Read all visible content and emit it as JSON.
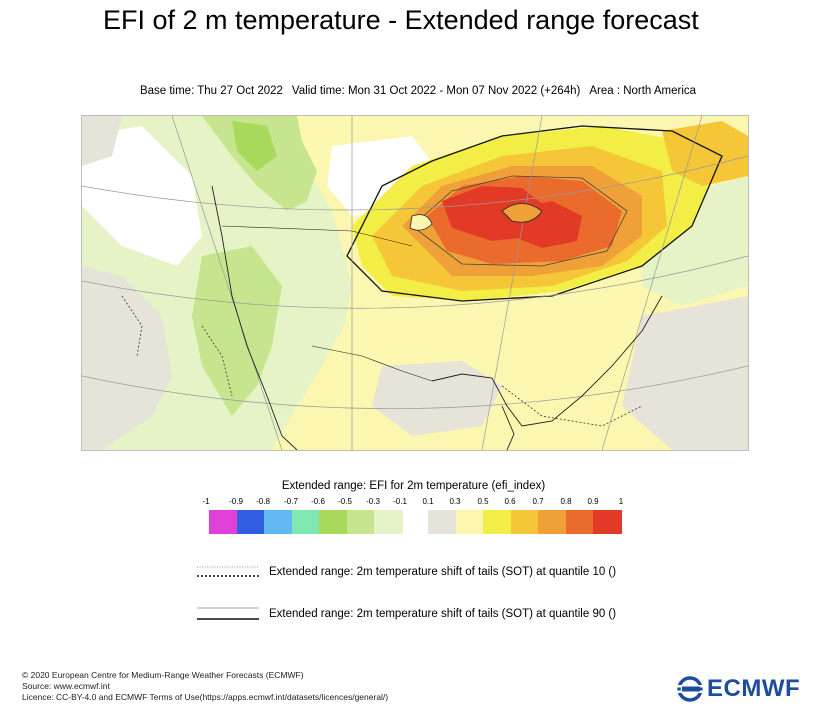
{
  "title": "EFI of 2 m temperature - Extended range forecast",
  "subtitle": {
    "base_time": "Base time: Thu 27 Oct 2022",
    "valid_time": "Valid time: Mon 31 Oct 2022 - Mon 07 Nov 2022 (+264h)",
    "area": "Area : North America"
  },
  "map": {
    "region": "North America",
    "description_icon": "efi-temperature-map"
  },
  "legend": {
    "title": "Extended range: EFI for 2m temperature (efi_index)",
    "tick_labels": [
      "-1",
      "-0.9",
      "-0.8",
      "-0.7",
      "-0.6",
      "-0.5",
      "-0.3",
      "-0.1",
      "0.1",
      "0.3",
      "0.5",
      "0.6",
      "0.7",
      "0.8",
      "0.9",
      "1"
    ],
    "colors": {
      "neg": [
        "#e040d8",
        "#2f5fe0",
        "#62b9f2",
        "#7fe8b0",
        "#a9d95a",
        "#c7e58f",
        "#e6f3c6"
      ],
      "pos": [
        "#e6e3d8",
        "#fbf7b0",
        "#f2ee46",
        "#f5c637",
        "#f0a038",
        "#ea6b2c",
        "#e33a27"
      ]
    },
    "sot_q10": "Extended range: 2m temperature shift of tails (SOT) at quantile 10 ()",
    "sot_q90": "Extended range: 2m temperature shift of tails (SOT) at quantile 90 ()"
  },
  "credits": {
    "line1": "© 2020 European Centre for Medium-Range Weather Forecasts (ECMWF)",
    "line2": "Source: www.ecmwf.int",
    "line3": "Licence: CC-BY-4.0 and ECMWF Terms of Use(https://apps.ecmwf.int/datasets/licences/general/)"
  },
  "logo": {
    "text": "ECMWF",
    "icon": "ecmwf-logo-icon"
  }
}
